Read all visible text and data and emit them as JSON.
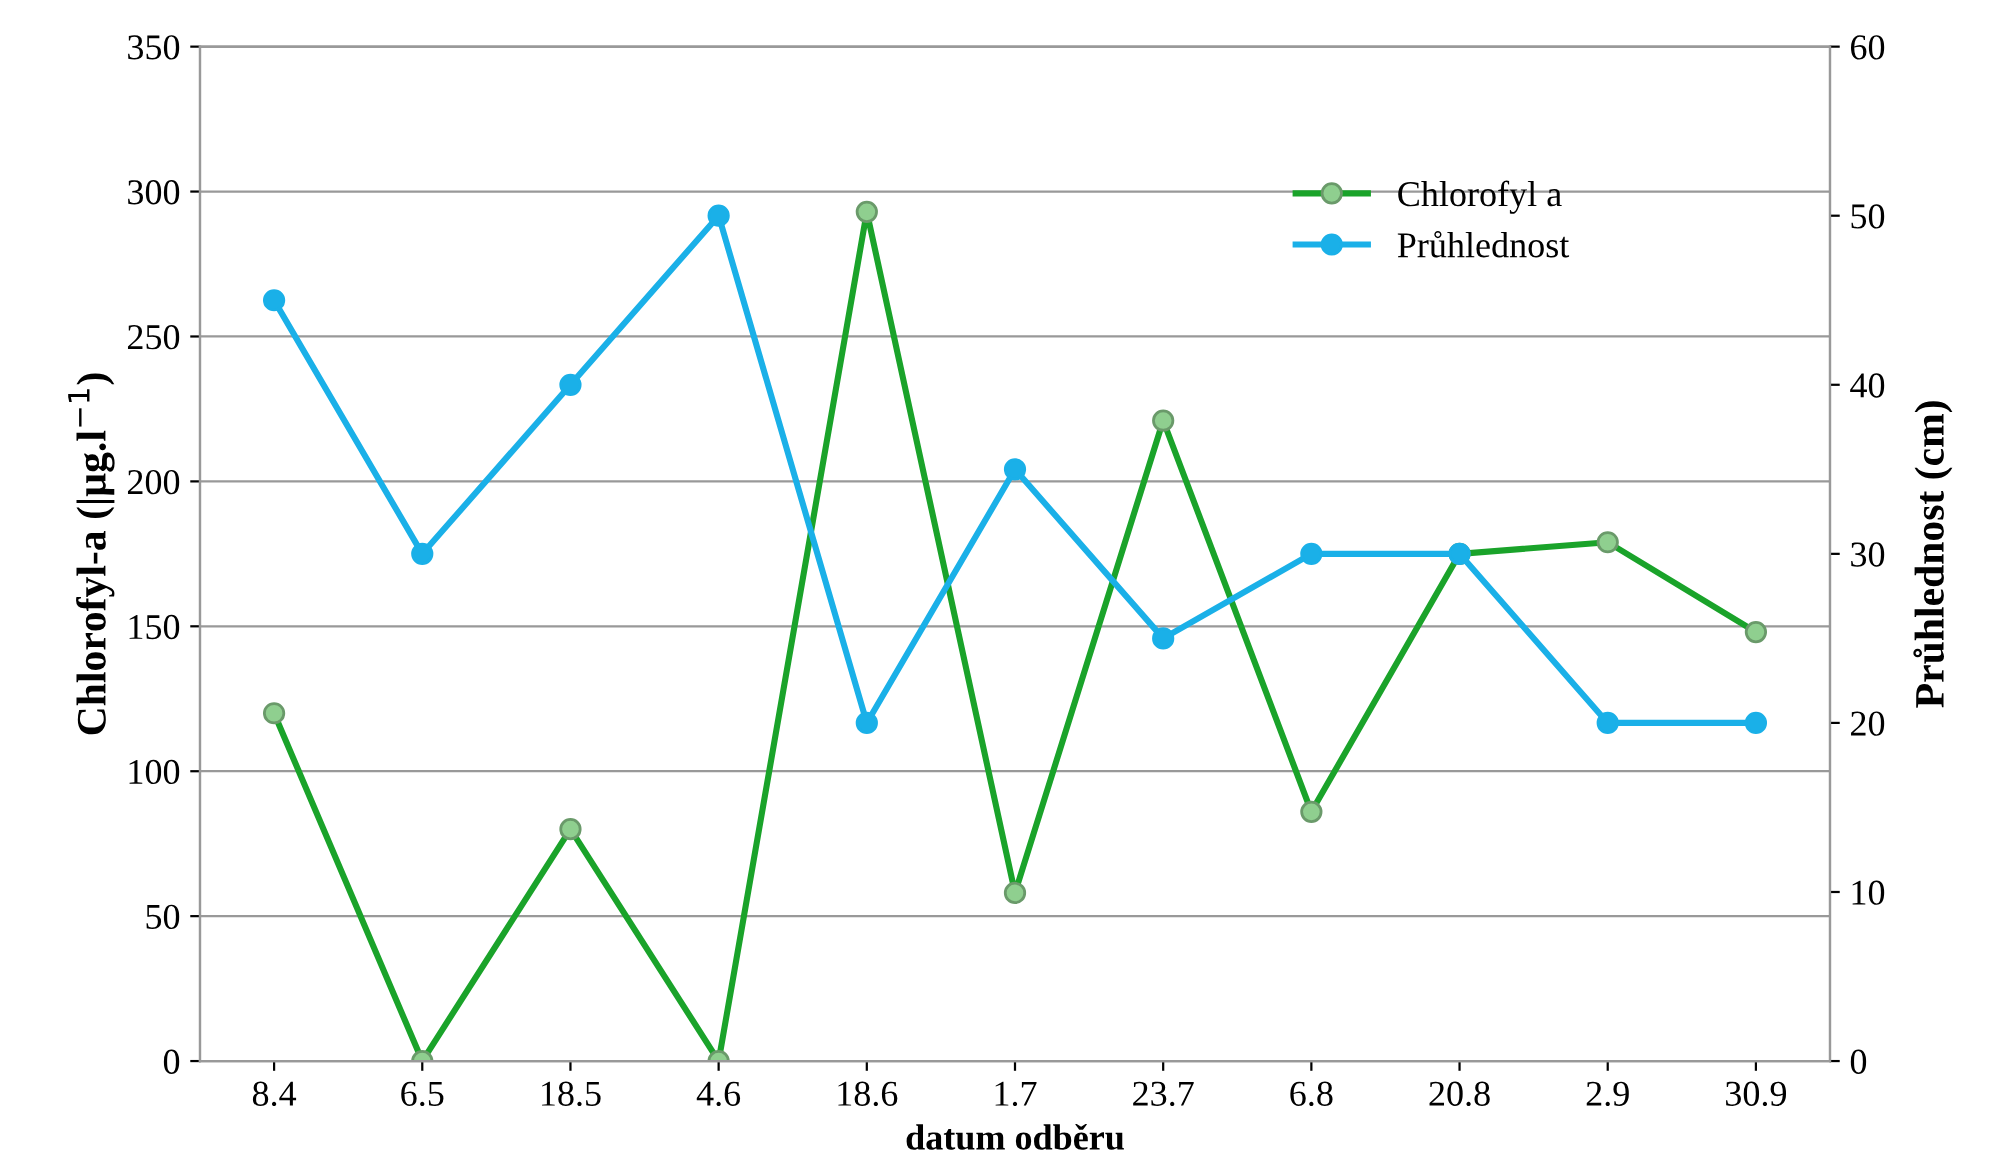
{
  "chart_data": {
    "type": "line",
    "xlabel": "datum odběru",
    "ylabel": "Chlorofyl-a (|µg.l$^{−1}$)",
    "y2label": "Průhlednost (cm)",
    "categories": [
      "8.4",
      "6.5",
      "18.5",
      "4.6",
      "18.6",
      "1.7",
      "23.7",
      "6.8",
      "20.8",
      "2.9",
      "30.9"
    ],
    "series": [
      {
        "name": "Chlorofyl a",
        "color": "#1aa32a",
        "values": [
          120,
          0,
          80,
          0,
          293,
          58,
          221,
          86,
          175,
          179,
          148
        ]
      },
      {
        "name": "Průhlednost",
        "color": "#1ab0e8",
        "axis": "y2",
        "values": [
          45,
          30,
          40,
          50,
          20,
          35,
          25,
          30,
          30,
          20,
          20
        ]
      }
    ],
    "ylim": [
      0,
      350
    ],
    "yticks": [
      0,
      50,
      100,
      150,
      200,
      250,
      300,
      350
    ],
    "y2lim": [
      0,
      60
    ],
    "y2ticks": [
      0,
      10,
      20,
      30,
      40,
      50,
      60
    ],
    "grid": "y",
    "legend": "top right",
    "marker": "circle",
    "line_style": "solid"
  }
}
